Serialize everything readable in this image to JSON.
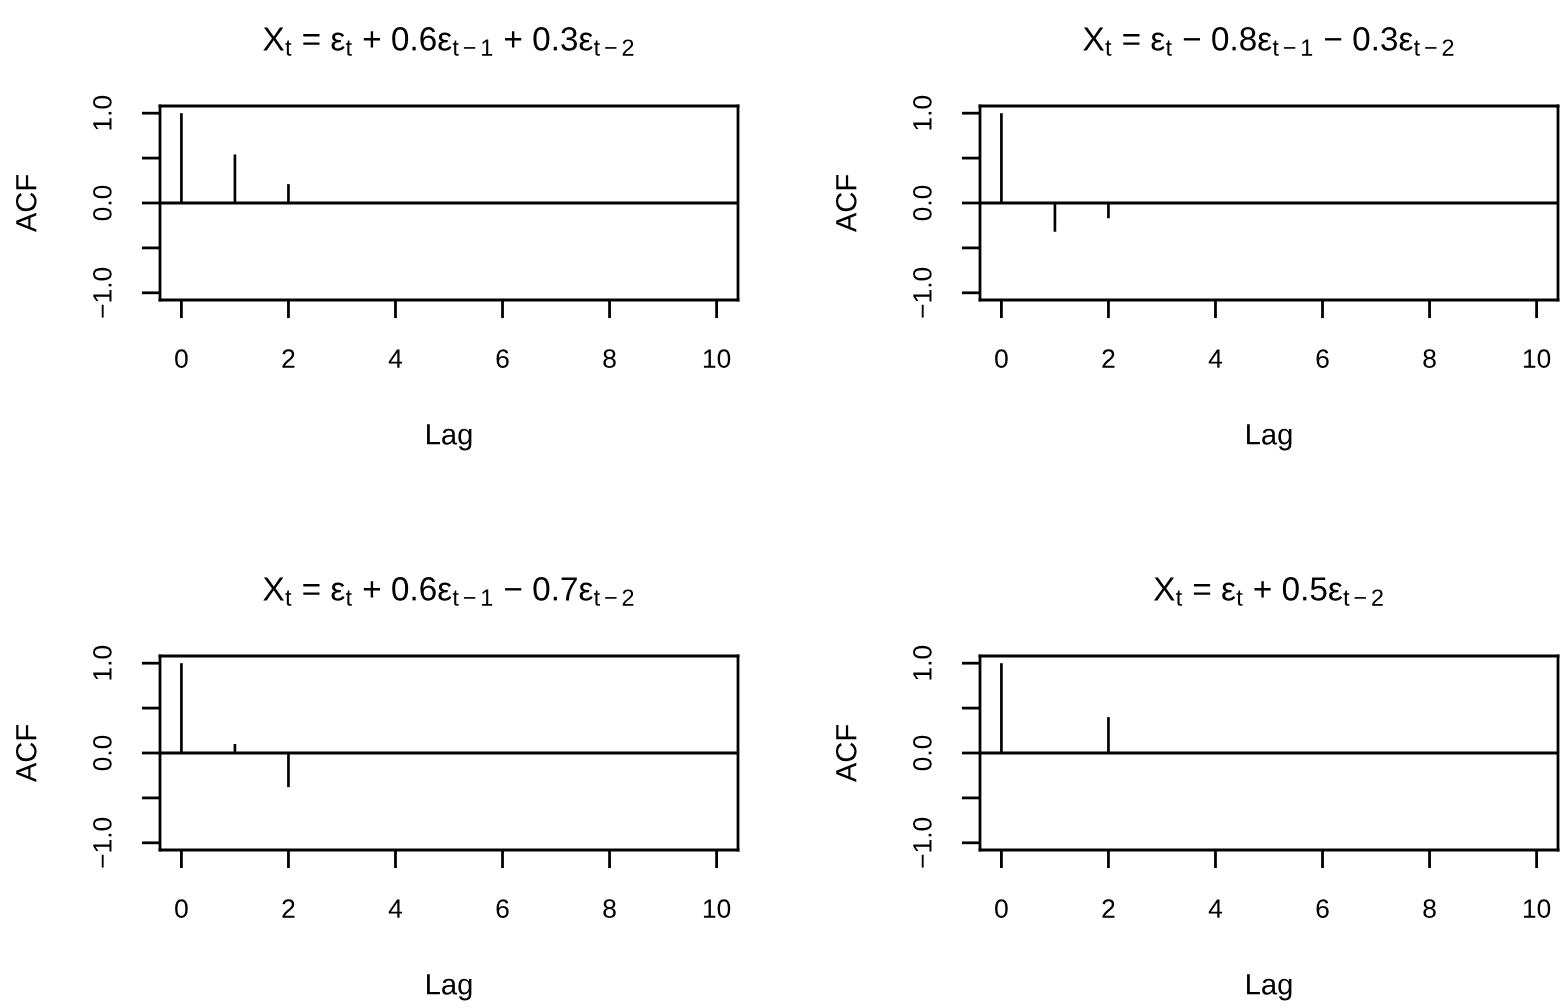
{
  "chart_data": [
    {
      "type": "bar",
      "title": "X$_{t}$ = ε$_{t}$ + 0.6ε$_{t−1}$ + 0.3ε$_{t−2}$",
      "xlabel": "Lag",
      "ylabel": "ACF",
      "x": [
        0,
        1,
        2,
        3,
        4,
        5,
        6,
        7,
        8,
        9,
        10
      ],
      "values": [
        1,
        0.54,
        0.21,
        0,
        0,
        0,
        0,
        0,
        0,
        0,
        0
      ],
      "color": "#000000",
      "xlim": [
        -0.4,
        10.4
      ],
      "ylim": [
        -1.08,
        1.08
      ],
      "xticks": [
        0,
        2,
        4,
        6,
        8,
        10
      ],
      "yticks": [
        {
          "value": -1,
          "label": "−1.0"
        },
        {
          "value": -0.5,
          "label": null
        },
        {
          "value": 0,
          "label": "0.0"
        },
        {
          "value": 0.5,
          "label": null
        },
        {
          "value": 1,
          "label": "1.0"
        }
      ],
      "ref_lines": [
        {
          "axis": "y",
          "value": 0,
          "color": "#000000"
        }
      ]
    },
    {
      "type": "bar",
      "title": "X$_{t}$ = ε$_{t}$ − 0.8ε$_{t−1}$ − 0.3ε$_{t−2}$",
      "xlabel": "Lag",
      "ylabel": "ACF",
      "x": [
        0,
        1,
        2,
        3,
        4,
        5,
        6,
        7,
        8,
        9,
        10
      ],
      "values": [
        1,
        -0.32,
        -0.17,
        0,
        0,
        0,
        0,
        0,
        0,
        0,
        0
      ],
      "color": "#000000",
      "xlim": [
        -0.4,
        10.4
      ],
      "ylim": [
        -1.08,
        1.08
      ],
      "xticks": [
        0,
        2,
        4,
        6,
        8,
        10
      ],
      "yticks": [
        {
          "value": -1,
          "label": "−1.0"
        },
        {
          "value": -0.5,
          "label": null
        },
        {
          "value": 0,
          "label": "0.0"
        },
        {
          "value": 0.5,
          "label": null
        },
        {
          "value": 1,
          "label": "1.0"
        }
      ],
      "ref_lines": [
        {
          "axis": "y",
          "value": 0,
          "color": "#000000"
        }
      ]
    },
    {
      "type": "bar",
      "title": "X$_{t}$ = ε$_{t}$ + 0.6ε$_{t−1}$ − 0.7ε$_{t−2}$",
      "xlabel": "Lag",
      "ylabel": "ACF",
      "x": [
        0,
        1,
        2,
        3,
        4,
        5,
        6,
        7,
        8,
        9,
        10
      ],
      "values": [
        1,
        0.1,
        -0.38,
        0,
        0,
        0,
        0,
        0,
        0,
        0,
        0
      ],
      "color": "#000000",
      "xlim": [
        -0.4,
        10.4
      ],
      "ylim": [
        -1.08,
        1.08
      ],
      "xticks": [
        0,
        2,
        4,
        6,
        8,
        10
      ],
      "yticks": [
        {
          "value": -1,
          "label": "−1.0"
        },
        {
          "value": -0.5,
          "label": null
        },
        {
          "value": 0,
          "label": "0.0"
        },
        {
          "value": 0.5,
          "label": null
        },
        {
          "value": 1,
          "label": "1.0"
        }
      ],
      "ref_lines": [
        {
          "axis": "y",
          "value": 0,
          "color": "#000000"
        }
      ]
    },
    {
      "type": "bar",
      "title": "X$_{t}$ = ε$_{t}$ + 0.5ε$_{t−2}$",
      "xlabel": "Lag",
      "ylabel": "ACF",
      "x": [
        0,
        1,
        2,
        3,
        4,
        5,
        6,
        7,
        8,
        9,
        10
      ],
      "values": [
        1,
        0,
        0.4,
        0,
        0,
        0,
        0,
        0,
        0,
        0,
        0
      ],
      "color": "#000000",
      "xlim": [
        -0.4,
        10.4
      ],
      "ylim": [
        -1.08,
        1.08
      ],
      "xticks": [
        0,
        2,
        4,
        6,
        8,
        10
      ],
      "yticks": [
        {
          "value": -1,
          "label": "−1.0"
        },
        {
          "value": -0.5,
          "label": null
        },
        {
          "value": 0,
          "label": "0.0"
        },
        {
          "value": 0.5,
          "label": null
        },
        {
          "value": 1,
          "label": "1.0"
        }
      ],
      "ref_lines": [
        {
          "axis": "y",
          "value": 0,
          "color": "#000000"
        }
      ]
    }
  ]
}
